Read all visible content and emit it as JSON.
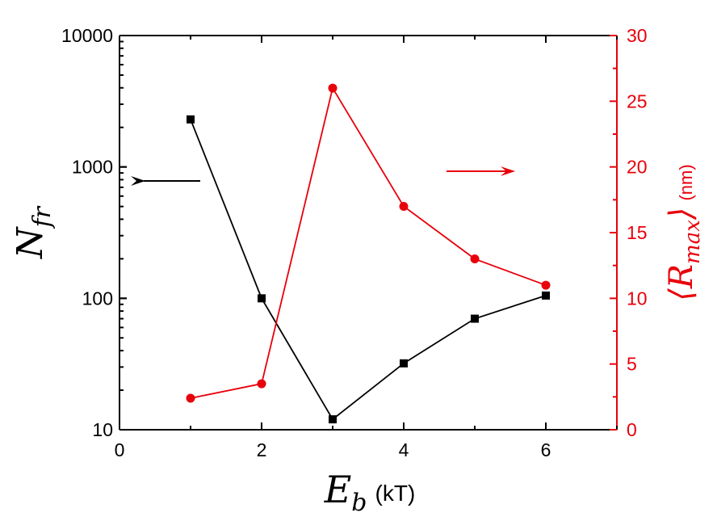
{
  "chart_data": {
    "type": "line",
    "x": [
      1,
      2,
      3,
      4,
      5,
      6
    ],
    "xlim": [
      0,
      7
    ],
    "xticks": [
      0,
      2,
      4,
      6
    ],
    "xlabel": {
      "symbol": "E",
      "subscript": "b",
      "unit": "(kT)"
    },
    "y_left": {
      "label": {
        "symbol": "N",
        "subscript": "fr"
      },
      "scale": "log",
      "lim": [
        10,
        10000
      ],
      "ticks": [
        10,
        100,
        1000,
        10000
      ],
      "color": "#000000"
    },
    "y_right": {
      "label": {
        "open": "⟨",
        "symbol": "R",
        "subscript": "max",
        "close": "⟩",
        "unit": "(nm)"
      },
      "scale": "linear",
      "lim": [
        0,
        30
      ],
      "ticks": [
        0,
        5,
        10,
        15,
        20,
        25,
        30
      ],
      "color": "#e8000b"
    },
    "series": [
      {
        "axis": "left",
        "marker": "square",
        "color": "#000000",
        "values": [
          2300,
          100,
          12,
          32,
          70,
          105
        ]
      },
      {
        "axis": "right",
        "marker": "circle",
        "color": "#e8000b",
        "values": [
          2.4,
          3.5,
          26,
          17,
          13,
          11
        ]
      }
    ],
    "annotations": [
      {
        "type": "arrow",
        "direction": "left",
        "color": "#000000"
      },
      {
        "type": "arrow",
        "direction": "right",
        "color": "#e8000b"
      }
    ]
  }
}
